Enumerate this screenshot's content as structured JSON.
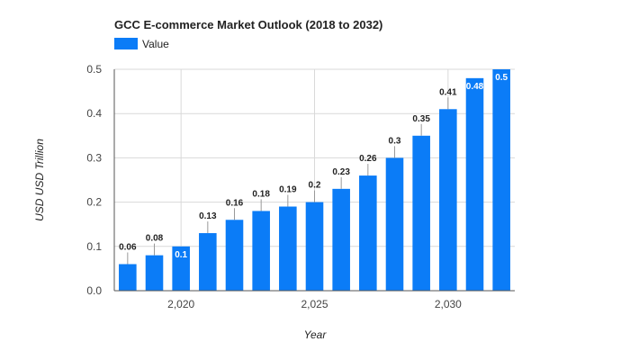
{
  "chart_data": {
    "type": "bar",
    "title": "GCC E-commerce Market Outlook (2018 to 2032)",
    "xlabel": "Year",
    "ylabel": "USD USD Trillion",
    "legend": {
      "position": "top-left",
      "entries": [
        "Value"
      ]
    },
    "grid": true,
    "ylim": [
      0,
      0.5
    ],
    "xlim": [
      2017.5,
      2032.5
    ],
    "yticks": [
      "0.0",
      "0.1",
      "0.2",
      "0.3",
      "0.4",
      "0.5"
    ],
    "xticks": [
      {
        "value": 2020,
        "label": "2,020"
      },
      {
        "value": 2025,
        "label": "2,025"
      },
      {
        "value": 2030,
        "label": "2,030"
      }
    ],
    "colors": {
      "bar": "#0b7cf7",
      "grid": "#d9d9d9",
      "axis": "#555555"
    },
    "series": [
      {
        "name": "Value",
        "x": [
          2018,
          2019,
          2020,
          2021,
          2022,
          2023,
          2024,
          2025,
          2026,
          2027,
          2028,
          2029,
          2030,
          2031,
          2032
        ],
        "values": [
          0.06,
          0.08,
          0.1,
          0.13,
          0.16,
          0.18,
          0.19,
          0.2,
          0.23,
          0.26,
          0.3,
          0.35,
          0.41,
          0.48,
          0.5
        ],
        "labels": [
          "0.06",
          "0.08",
          "0.1",
          "0.13",
          "0.16",
          "0.18",
          "0.19",
          "0.2",
          "0.23",
          "0.26",
          "0.3",
          "0.35",
          "0.41",
          "0.48",
          "0.5"
        ]
      }
    ]
  }
}
